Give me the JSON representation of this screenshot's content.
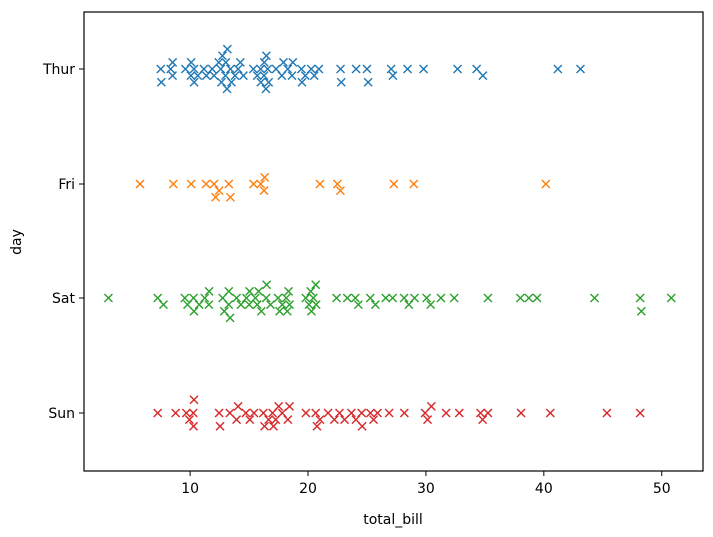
{
  "chart_data": {
    "type": "scatter",
    "style": "swarm",
    "marker": "x",
    "xlabel": "total_bill",
    "ylabel": "day",
    "xlim": [
      1.0,
      53.5
    ],
    "xticks": [
      "10",
      "20",
      "30",
      "40",
      "50"
    ],
    "categories": [
      "Thur",
      "Fri",
      "Sat",
      "Sun"
    ],
    "grid": false,
    "legend": "none",
    "series": [
      {
        "color": "#1f77b4",
        "values": [
          7.51,
          7.56,
          8.35,
          8.51,
          8.52,
          9.6,
          10.07,
          10.09,
          10.33,
          10.34,
          10.65,
          11.17,
          11.38,
          11.87,
          12.03,
          12.43,
          12.6,
          12.66,
          12.74,
          13.0,
          13.03,
          13.13,
          13.16,
          13.42,
          13.51,
          13.81,
          14.07,
          14.26,
          14.52,
          15.36,
          15.69,
          15.98,
          16.0,
          16.27,
          16.29,
          16.43,
          16.47,
          16.58,
          16.66,
          17.29,
          17.78,
          17.92,
          18.28,
          18.64,
          18.71,
          19.44,
          19.49,
          19.77,
          20.27,
          20.53,
          20.92,
          22.82,
          22.76,
          24.08,
          25.0,
          25.1,
          27.05,
          27.2,
          28.44,
          29.8,
          32.68,
          34.3,
          34.83,
          41.19,
          43.11
        ]
      },
      {
        "color": "#ff7f0e",
        "values": [
          5.75,
          8.58,
          10.09,
          11.35,
          12.03,
          12.16,
          12.46,
          13.28,
          13.42,
          15.38,
          15.98,
          16.32,
          16.27,
          21.01,
          22.49,
          22.75,
          27.28,
          28.97,
          40.17
        ]
      },
      {
        "color": "#2ca02c",
        "values": [
          3.07,
          7.25,
          7.74,
          9.55,
          9.78,
          10.29,
          10.33,
          10.77,
          11.24,
          11.59,
          11.61,
          12.76,
          12.9,
          13.27,
          13.28,
          13.39,
          13.94,
          14.31,
          14.78,
          15.01,
          15.04,
          15.53,
          15.69,
          15.81,
          16.04,
          16.45,
          16.49,
          16.82,
          17.46,
          17.59,
          17.82,
          18.15,
          18.24,
          18.35,
          18.43,
          19.81,
          20.08,
          20.23,
          20.29,
          20.45,
          20.65,
          20.69,
          22.42,
          23.33,
          24.01,
          24.27,
          25.28,
          25.71,
          26.59,
          27.18,
          28.15,
          28.55,
          29.03,
          30.06,
          30.4,
          31.27,
          32.4,
          35.26,
          38.01,
          38.73,
          39.42,
          44.3,
          48.17,
          48.27,
          50.81
        ]
      },
      {
        "color": "#d62728",
        "values": [
          7.25,
          8.77,
          9.68,
          9.94,
          10.27,
          10.29,
          10.33,
          12.46,
          12.54,
          13.37,
          13.94,
          14.07,
          14.73,
          15.06,
          15.42,
          16.21,
          16.31,
          16.66,
          16.99,
          17.07,
          17.26,
          17.51,
          17.81,
          18.29,
          18.43,
          19.82,
          20.65,
          20.76,
          21.01,
          21.7,
          22.23,
          22.67,
          23.1,
          23.68,
          24.06,
          24.55,
          24.59,
          25.29,
          25.56,
          25.89,
          26.88,
          28.17,
          29.93,
          30.14,
          30.46,
          31.71,
          32.83,
          34.63,
          34.81,
          35.26,
          38.07,
          40.55,
          45.35,
          48.17
        ]
      }
    ]
  }
}
